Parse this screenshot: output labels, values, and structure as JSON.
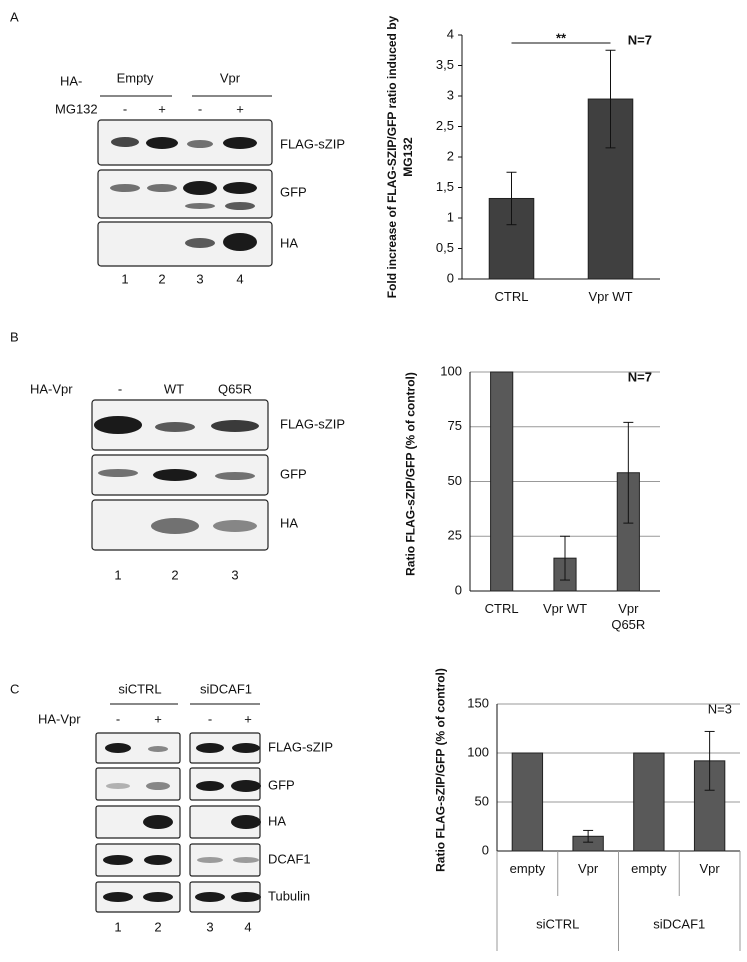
{
  "panel_a": {
    "letter": "A",
    "ha_prefix": "HA-",
    "groups": [
      "Empty",
      "Vpr"
    ],
    "treatment": "MG132",
    "lane_signs": [
      "-",
      "+",
      "-",
      "+"
    ],
    "bands": [
      "FLAG-sZIP",
      "GFP",
      "HA"
    ],
    "lanes": [
      "1",
      "2",
      "3",
      "4"
    ]
  },
  "panel_b": {
    "letter": "B",
    "ha_label": "HA-Vpr",
    "conditions": [
      "-",
      "WT",
      "Q65R"
    ],
    "bands": [
      "FLAG-sZIP",
      "GFP",
      "HA"
    ],
    "lanes": [
      "1",
      "2",
      "3"
    ]
  },
  "panel_c": {
    "letter": "C",
    "groups": [
      "siCTRL",
      "siDCAF1"
    ],
    "ha_label": "HA-Vpr",
    "lane_signs": [
      "-",
      "+",
      "-",
      "+"
    ],
    "bands": [
      "FLAG-sZIP",
      "GFP",
      "HA",
      "DCAF1",
      "Tubulin"
    ],
    "lanes": [
      "1",
      "2",
      "3",
      "4"
    ]
  },
  "chart_data": [
    {
      "type": "bar",
      "y_label": "Fold increase of FLAG-SZIP/GFP ratio induced  by MG132",
      "categories": [
        "CTRL",
        "Vpr WT"
      ],
      "values": [
        1.32,
        2.95
      ],
      "errors": [
        0.43,
        0.8
      ],
      "color": "#404040",
      "ylim": [
        0,
        4
      ],
      "yticks": [
        0,
        {
          "value": 0.5,
          "label": "0,5"
        },
        1,
        {
          "value": 1.5,
          "label": "1,5"
        },
        2,
        {
          "value": 2.5,
          "label": "2,5"
        },
        3,
        {
          "value": 3.5,
          "label": "3,5"
        },
        4
      ],
      "grid": false,
      "significance": "**",
      "n_label": "N=7"
    },
    {
      "type": "bar",
      "y_label": "Ratio FLAG-sZIP/GFP (% of control)",
      "categories": [
        "CTRL",
        "Vpr WT",
        "Vpr Q65R"
      ],
      "values": [
        100,
        15,
        54
      ],
      "errors": [
        null,
        10,
        23
      ],
      "color": "#595959",
      "ylim": [
        0,
        100
      ],
      "yticks": [
        0,
        25,
        50,
        75,
        100
      ],
      "grid": true,
      "n_label": "N=7"
    },
    {
      "type": "bar",
      "y_label": "Ratio FLAG-sZIP/GFP (% of control)",
      "categories": [
        "empty",
        "Vpr",
        "empty",
        "Vpr"
      ],
      "groups": [
        "siCTRL",
        "siDCAF1"
      ],
      "values": [
        100,
        15,
        100,
        92
      ],
      "errors": [
        null,
        6,
        null,
        30
      ],
      "color": "#595959",
      "ylim": [
        0,
        150
      ],
      "yticks": [
        0,
        50,
        100,
        150
      ],
      "grid": true,
      "n_label": "N=3"
    }
  ]
}
